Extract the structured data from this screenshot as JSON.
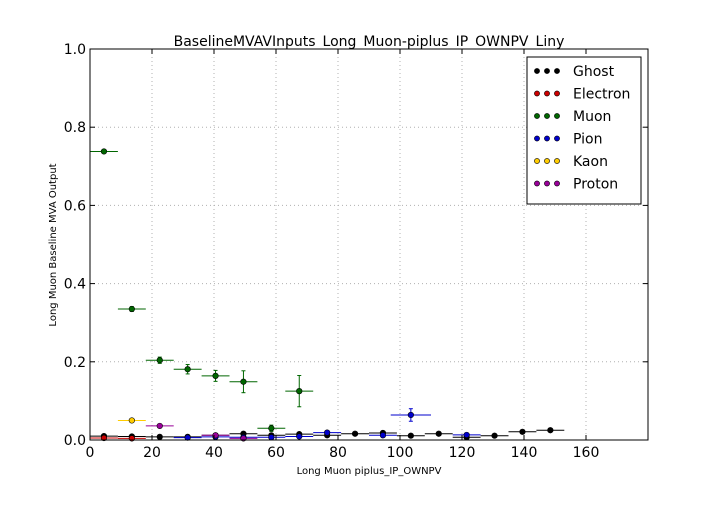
{
  "chart_data": {
    "type": "scatter",
    "title": "BaselineMVAVInputs_Long_Muon-piplus_IP_OWNPV_Liny",
    "xlabel": "Long Muon piplus_IP_OWNPV",
    "ylabel": "Long Muon Baseline MVA Output",
    "xlim": [
      0,
      180
    ],
    "ylim": [
      0,
      1.0
    ],
    "xticks": [
      0,
      20,
      40,
      60,
      80,
      100,
      120,
      140,
      160
    ],
    "xtick_labels": [
      "0",
      "20",
      "40",
      "60",
      "80",
      "100",
      "120",
      "140",
      "160"
    ],
    "yticks": [
      0,
      0.2,
      0.4,
      0.6,
      0.8,
      1.0
    ],
    "ytick_labels": [
      "0.0",
      "0.2",
      "0.4",
      "0.6",
      "0.8",
      "1.0"
    ],
    "grid": true,
    "legend_position": "top-right",
    "series": [
      {
        "name": "Ghost",
        "color": "#000000",
        "points": [
          {
            "x": 4.5,
            "y": 0.01,
            "xerr": 4.5,
            "yerr": 0.003
          },
          {
            "x": 13.5,
            "y": 0.009,
            "xerr": 4.5,
            "yerr": 0.003
          },
          {
            "x": 22.5,
            "y": 0.008,
            "xerr": 4.5,
            "yerr": 0.003
          },
          {
            "x": 31.5,
            "y": 0.008,
            "xerr": 4.5,
            "yerr": 0.003
          },
          {
            "x": 40.5,
            "y": 0.012,
            "xerr": 4.5,
            "yerr": 0.003
          },
          {
            "x": 49.5,
            "y": 0.016,
            "xerr": 4.5,
            "yerr": 0.003
          },
          {
            "x": 58.5,
            "y": 0.012,
            "xerr": 4.5,
            "yerr": 0.003
          },
          {
            "x": 67.5,
            "y": 0.015,
            "xerr": 4.5,
            "yerr": 0.003
          },
          {
            "x": 76.5,
            "y": 0.012,
            "xerr": 4.5,
            "yerr": 0.003
          },
          {
            "x": 85.5,
            "y": 0.016,
            "xerr": 4.5,
            "yerr": 0.003
          },
          {
            "x": 94.5,
            "y": 0.018,
            "xerr": 4.5,
            "yerr": 0.003
          },
          {
            "x": 103.5,
            "y": 0.011,
            "xerr": 4.5,
            "yerr": 0.003
          },
          {
            "x": 112.5,
            "y": 0.016,
            "xerr": 4.5,
            "yerr": 0.003
          },
          {
            "x": 121.5,
            "y": 0.007,
            "xerr": 4.5,
            "yerr": 0.003
          },
          {
            "x": 130.5,
            "y": 0.011,
            "xerr": 4.5,
            "yerr": 0.003
          },
          {
            "x": 139.5,
            "y": 0.021,
            "xerr": 4.5,
            "yerr": 0.003
          },
          {
            "x": 148.5,
            "y": 0.025,
            "xerr": 4.5,
            "yerr": 0.003
          }
        ]
      },
      {
        "name": "Electron",
        "color": "#cc0000",
        "points": [
          {
            "x": 4.5,
            "y": 0.005,
            "xerr": 4.5,
            "yerr": 0.002
          },
          {
            "x": 13.5,
            "y": 0.004,
            "xerr": 4.5,
            "yerr": 0.002
          }
        ]
      },
      {
        "name": "Muon",
        "color": "#006600",
        "points": [
          {
            "x": 4.5,
            "y": 0.738,
            "xerr": 4.5,
            "yerr": 0.004
          },
          {
            "x": 13.5,
            "y": 0.335,
            "xerr": 4.5,
            "yerr": 0.006
          },
          {
            "x": 22.5,
            "y": 0.204,
            "xerr": 4.5,
            "yerr": 0.008
          },
          {
            "x": 31.5,
            "y": 0.181,
            "xerr": 4.5,
            "yerr": 0.012
          },
          {
            "x": 40.5,
            "y": 0.164,
            "xerr": 4.5,
            "yerr": 0.014
          },
          {
            "x": 49.5,
            "y": 0.149,
            "xerr": 4.5,
            "yerr": 0.028
          },
          {
            "x": 58.5,
            "y": 0.03,
            "xerr": 4.5,
            "yerr": 0.008
          },
          {
            "x": 67.5,
            "y": 0.125,
            "xerr": 4.5,
            "yerr": 0.04
          }
        ]
      },
      {
        "name": "Pion",
        "color": "#0000cc",
        "points": [
          {
            "x": 31.5,
            "y": 0.006,
            "xerr": 4.5,
            "yerr": 0.002
          },
          {
            "x": 40.5,
            "y": 0.008,
            "xerr": 4.5,
            "yerr": 0.002
          },
          {
            "x": 49.5,
            "y": 0.007,
            "xerr": 4.5,
            "yerr": 0.002
          },
          {
            "x": 58.5,
            "y": 0.007,
            "xerr": 4.5,
            "yerr": 0.002
          },
          {
            "x": 67.5,
            "y": 0.009,
            "xerr": 4.5,
            "yerr": 0.002
          },
          {
            "x": 76.5,
            "y": 0.019,
            "xerr": 4.5,
            "yerr": 0.004
          },
          {
            "x": 94.5,
            "y": 0.012,
            "xerr": 4.5,
            "yerr": 0.003
          },
          {
            "x": 103.5,
            "y": 0.064,
            "xerr": 6.5,
            "yerr": 0.016
          },
          {
            "x": 121.5,
            "y": 0.013,
            "xerr": 4.5,
            "yerr": 0.003
          }
        ]
      },
      {
        "name": "Kaon",
        "color": "#ffcc00",
        "points": [
          {
            "x": 13.5,
            "y": 0.05,
            "xerr": 4.5,
            "yerr": 0.004
          }
        ]
      },
      {
        "name": "Proton",
        "color": "#990099",
        "points": [
          {
            "x": 22.5,
            "y": 0.036,
            "xerr": 4.5,
            "yerr": 0.004
          },
          {
            "x": 40.5,
            "y": 0.012,
            "xerr": 4.5,
            "yerr": 0.003
          },
          {
            "x": 49.5,
            "y": 0.004,
            "xerr": 4.5,
            "yerr": 0.002
          }
        ]
      }
    ]
  }
}
